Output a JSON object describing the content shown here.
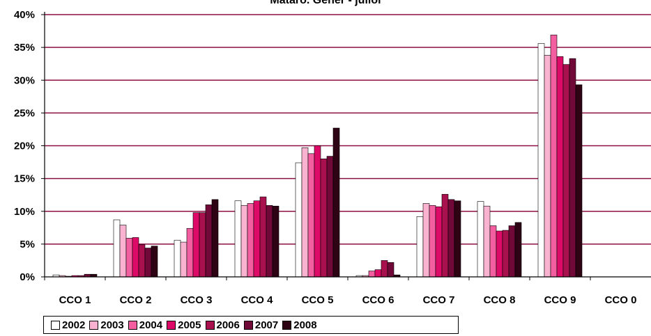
{
  "chart_data": {
    "type": "bar",
    "title": "Mataró. Gener - juliol",
    "categories": [
      "CCO 1",
      "CCO 2",
      "CCO 3",
      "CCO 4",
      "CCO 5",
      "CCO 6",
      "CCO 7",
      "CCO 8",
      "CCO 9",
      "CCO 0"
    ],
    "ylim": [
      0,
      40
    ],
    "yticks": [
      "0%",
      "5%",
      "10%",
      "15%",
      "20%",
      "25%",
      "30%",
      "35%",
      "40%"
    ],
    "grid": true,
    "legend_position": "bottom",
    "series": [
      {
        "name": "2002",
        "color": "#ffffff",
        "values": [
          0.3,
          8.7,
          5.6,
          11.6,
          17.4,
          0.2,
          9.2,
          11.5,
          35.6,
          0.0
        ]
      },
      {
        "name": "2003",
        "color": "#f9b3d1",
        "values": [
          0.2,
          7.9,
          5.3,
          10.9,
          19.7,
          0.2,
          11.2,
          10.8,
          33.8,
          0.0
        ]
      },
      {
        "name": "2004",
        "color": "#f25ea0",
        "values": [
          0.1,
          5.9,
          7.4,
          11.2,
          18.8,
          0.9,
          10.9,
          7.8,
          36.9,
          0.0
        ]
      },
      {
        "name": "2005",
        "color": "#de0a67",
        "values": [
          0.2,
          6.0,
          9.8,
          11.6,
          20.0,
          1.1,
          10.7,
          7.0,
          33.6,
          0.0
        ]
      },
      {
        "name": "2006",
        "color": "#a8104e",
        "values": [
          0.2,
          4.9,
          9.8,
          12.2,
          18.0,
          2.5,
          12.6,
          7.1,
          32.4,
          0.0
        ]
      },
      {
        "name": "2007",
        "color": "#700838",
        "values": [
          0.4,
          4.4,
          11.0,
          10.9,
          18.4,
          2.2,
          11.8,
          7.8,
          33.3,
          0.0
        ]
      },
      {
        "name": "2008",
        "color": "#2e0415",
        "values": [
          0.4,
          4.7,
          11.8,
          10.8,
          22.7,
          0.3,
          11.6,
          8.3,
          29.3,
          0.0
        ]
      }
    ]
  }
}
